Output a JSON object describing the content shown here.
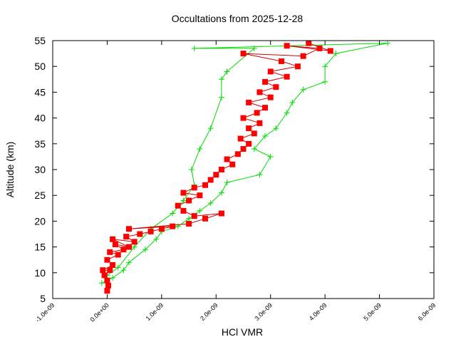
{
  "chart_data": {
    "type": "scatter",
    "title": "Occultations from 2025-12-28",
    "xlabel": "HCl VMR",
    "ylabel": "Altitude (km)",
    "xlim": [
      -1e-09,
      6e-09
    ],
    "ylim": [
      5,
      55
    ],
    "grid": false,
    "legend": null,
    "x_ticks": [
      -1e-09,
      0,
      1e-09,
      2e-09,
      3e-09,
      4e-09,
      5e-09,
      6e-09
    ],
    "x_tick_labels": [
      "-1.0e-09",
      "0.0e+00",
      "1.0e-09",
      "2.0e-09",
      "3.0e-09",
      "4.0e-09",
      "5.0e-09",
      "6.0e-09"
    ],
    "y_ticks": [
      5,
      10,
      15,
      20,
      25,
      30,
      35,
      40,
      45,
      50,
      55
    ],
    "y_tick_labels": [
      "5",
      "10",
      "15",
      "20",
      "25",
      "30",
      "35",
      "40",
      "45",
      "50",
      "55"
    ],
    "series": [
      {
        "name": "profile-red",
        "marker": "square",
        "color": "#ff0000",
        "line_color": "#cc0000",
        "points": [
          [
            0.0,
            6.5
          ],
          [
            2e-11,
            7.5
          ],
          [
            0.0,
            8.5
          ],
          [
            -5e-11,
            9.5
          ],
          [
            5e-11,
            10.5
          ],
          [
            -8e-11,
            10.5
          ],
          [
            1e-10,
            11.5
          ],
          [
            0.0,
            12.5
          ],
          [
            2e-10,
            13.5
          ],
          [
            5e-11,
            14.0
          ],
          [
            3e-10,
            14.5
          ],
          [
            1.5e-10,
            15.5
          ],
          [
            4e-10,
            15.0
          ],
          [
            1e-10,
            16.5
          ],
          [
            5e-10,
            16.0
          ],
          [
            3.5e-10,
            17.0
          ],
          [
            6e-10,
            17.5
          ],
          [
            8e-10,
            18.0
          ],
          [
            1e-09,
            18.5
          ],
          [
            1.2e-09,
            19.0
          ],
          [
            4e-10,
            18.5
          ],
          [
            1.5e-09,
            19.5
          ],
          [
            1.8e-09,
            20.5
          ],
          [
            2.1e-09,
            21.5
          ],
          [
            1.6e-09,
            21.0
          ],
          [
            1.4e-09,
            22.0
          ],
          [
            1.3e-09,
            23.0
          ],
          [
            1.5e-09,
            24.0
          ],
          [
            1.7e-09,
            25.0
          ],
          [
            1.4e-09,
            25.5
          ],
          [
            1.6e-09,
            26.5
          ],
          [
            1.8e-09,
            27.0
          ],
          [
            1.9e-09,
            28.0
          ],
          [
            2e-09,
            29.0
          ],
          [
            2.1e-09,
            30.0
          ],
          [
            2.3e-09,
            31.0
          ],
          [
            2.2e-09,
            32.0
          ],
          [
            2.4e-09,
            33.0
          ],
          [
            2.5e-09,
            34.0
          ],
          [
            2.6e-09,
            35.0
          ],
          [
            2.45e-09,
            36.0
          ],
          [
            2.7e-09,
            37.0
          ],
          [
            2.6e-09,
            38.0
          ],
          [
            2.8e-09,
            39.0
          ],
          [
            2.5e-09,
            40.0
          ],
          [
            2.75e-09,
            41.0
          ],
          [
            2.9e-09,
            42.0
          ],
          [
            2.6e-09,
            43.0
          ],
          [
            3e-09,
            44.0
          ],
          [
            2.8e-09,
            45.0
          ],
          [
            3.1e-09,
            46.0
          ],
          [
            2.9e-09,
            47.0
          ],
          [
            3.3e-09,
            48.0
          ],
          [
            3e-09,
            49.0
          ],
          [
            3.5e-09,
            50.0
          ],
          [
            3.2e-09,
            51.0
          ],
          [
            2.5e-09,
            52.5
          ],
          [
            3.6e-09,
            52.0
          ],
          [
            3.9e-09,
            53.5
          ],
          [
            3.3e-09,
            54.0
          ],
          [
            4.1e-09,
            53.0
          ],
          [
            3.7e-09,
            54.5
          ]
        ]
      },
      {
        "name": "profile-green",
        "marker": "plus",
        "color": "#00dd00",
        "points": [
          [
            -1e-10,
            8.0
          ],
          [
            1e-10,
            9.0
          ],
          [
            3e-10,
            10.5
          ],
          [
            4e-10,
            12.0
          ],
          [
            7e-10,
            14.5
          ],
          [
            9e-10,
            16.5
          ],
          [
            1e-09,
            18.0
          ],
          [
            1.3e-09,
            19.0
          ],
          [
            1.5e-09,
            20.5
          ],
          [
            1.7e-09,
            22.0
          ],
          [
            1.9e-09,
            23.5
          ],
          [
            2.1e-09,
            25.5
          ],
          [
            2.2e-09,
            27.5
          ],
          [
            2.8e-09,
            29.0
          ],
          [
            3e-09,
            32.5
          ],
          [
            2.7e-09,
            34.0
          ],
          [
            2.9e-09,
            36.5
          ],
          [
            3.1e-09,
            38.0
          ],
          [
            3.3e-09,
            41.0
          ],
          [
            3.4e-09,
            43.0
          ],
          [
            3.6e-09,
            45.5
          ],
          [
            4e-09,
            47.0
          ],
          [
            4e-09,
            50.0
          ],
          [
            4.2e-09,
            52.5
          ],
          [
            5.15e-09,
            54.5
          ],
          [
            1.6e-09,
            53.5
          ],
          [
            2.7e-09,
            53.5
          ],
          [
            2.2e-09,
            49.0
          ],
          [
            2.1e-09,
            47.5
          ],
          [
            2.1e-09,
            44.0
          ],
          [
            1.9e-09,
            38.0
          ],
          [
            1.7e-09,
            34.0
          ],
          [
            1.55e-09,
            30.0
          ],
          [
            1.6e-09,
            27.0
          ],
          [
            1.4e-09,
            24.0
          ],
          [
            1.2e-09,
            21.5
          ],
          [
            8e-10,
            18.5
          ],
          [
            5e-10,
            15.0
          ],
          [
            2e-10,
            11.0
          ],
          [
            0.0,
            9.5
          ]
        ]
      }
    ]
  }
}
